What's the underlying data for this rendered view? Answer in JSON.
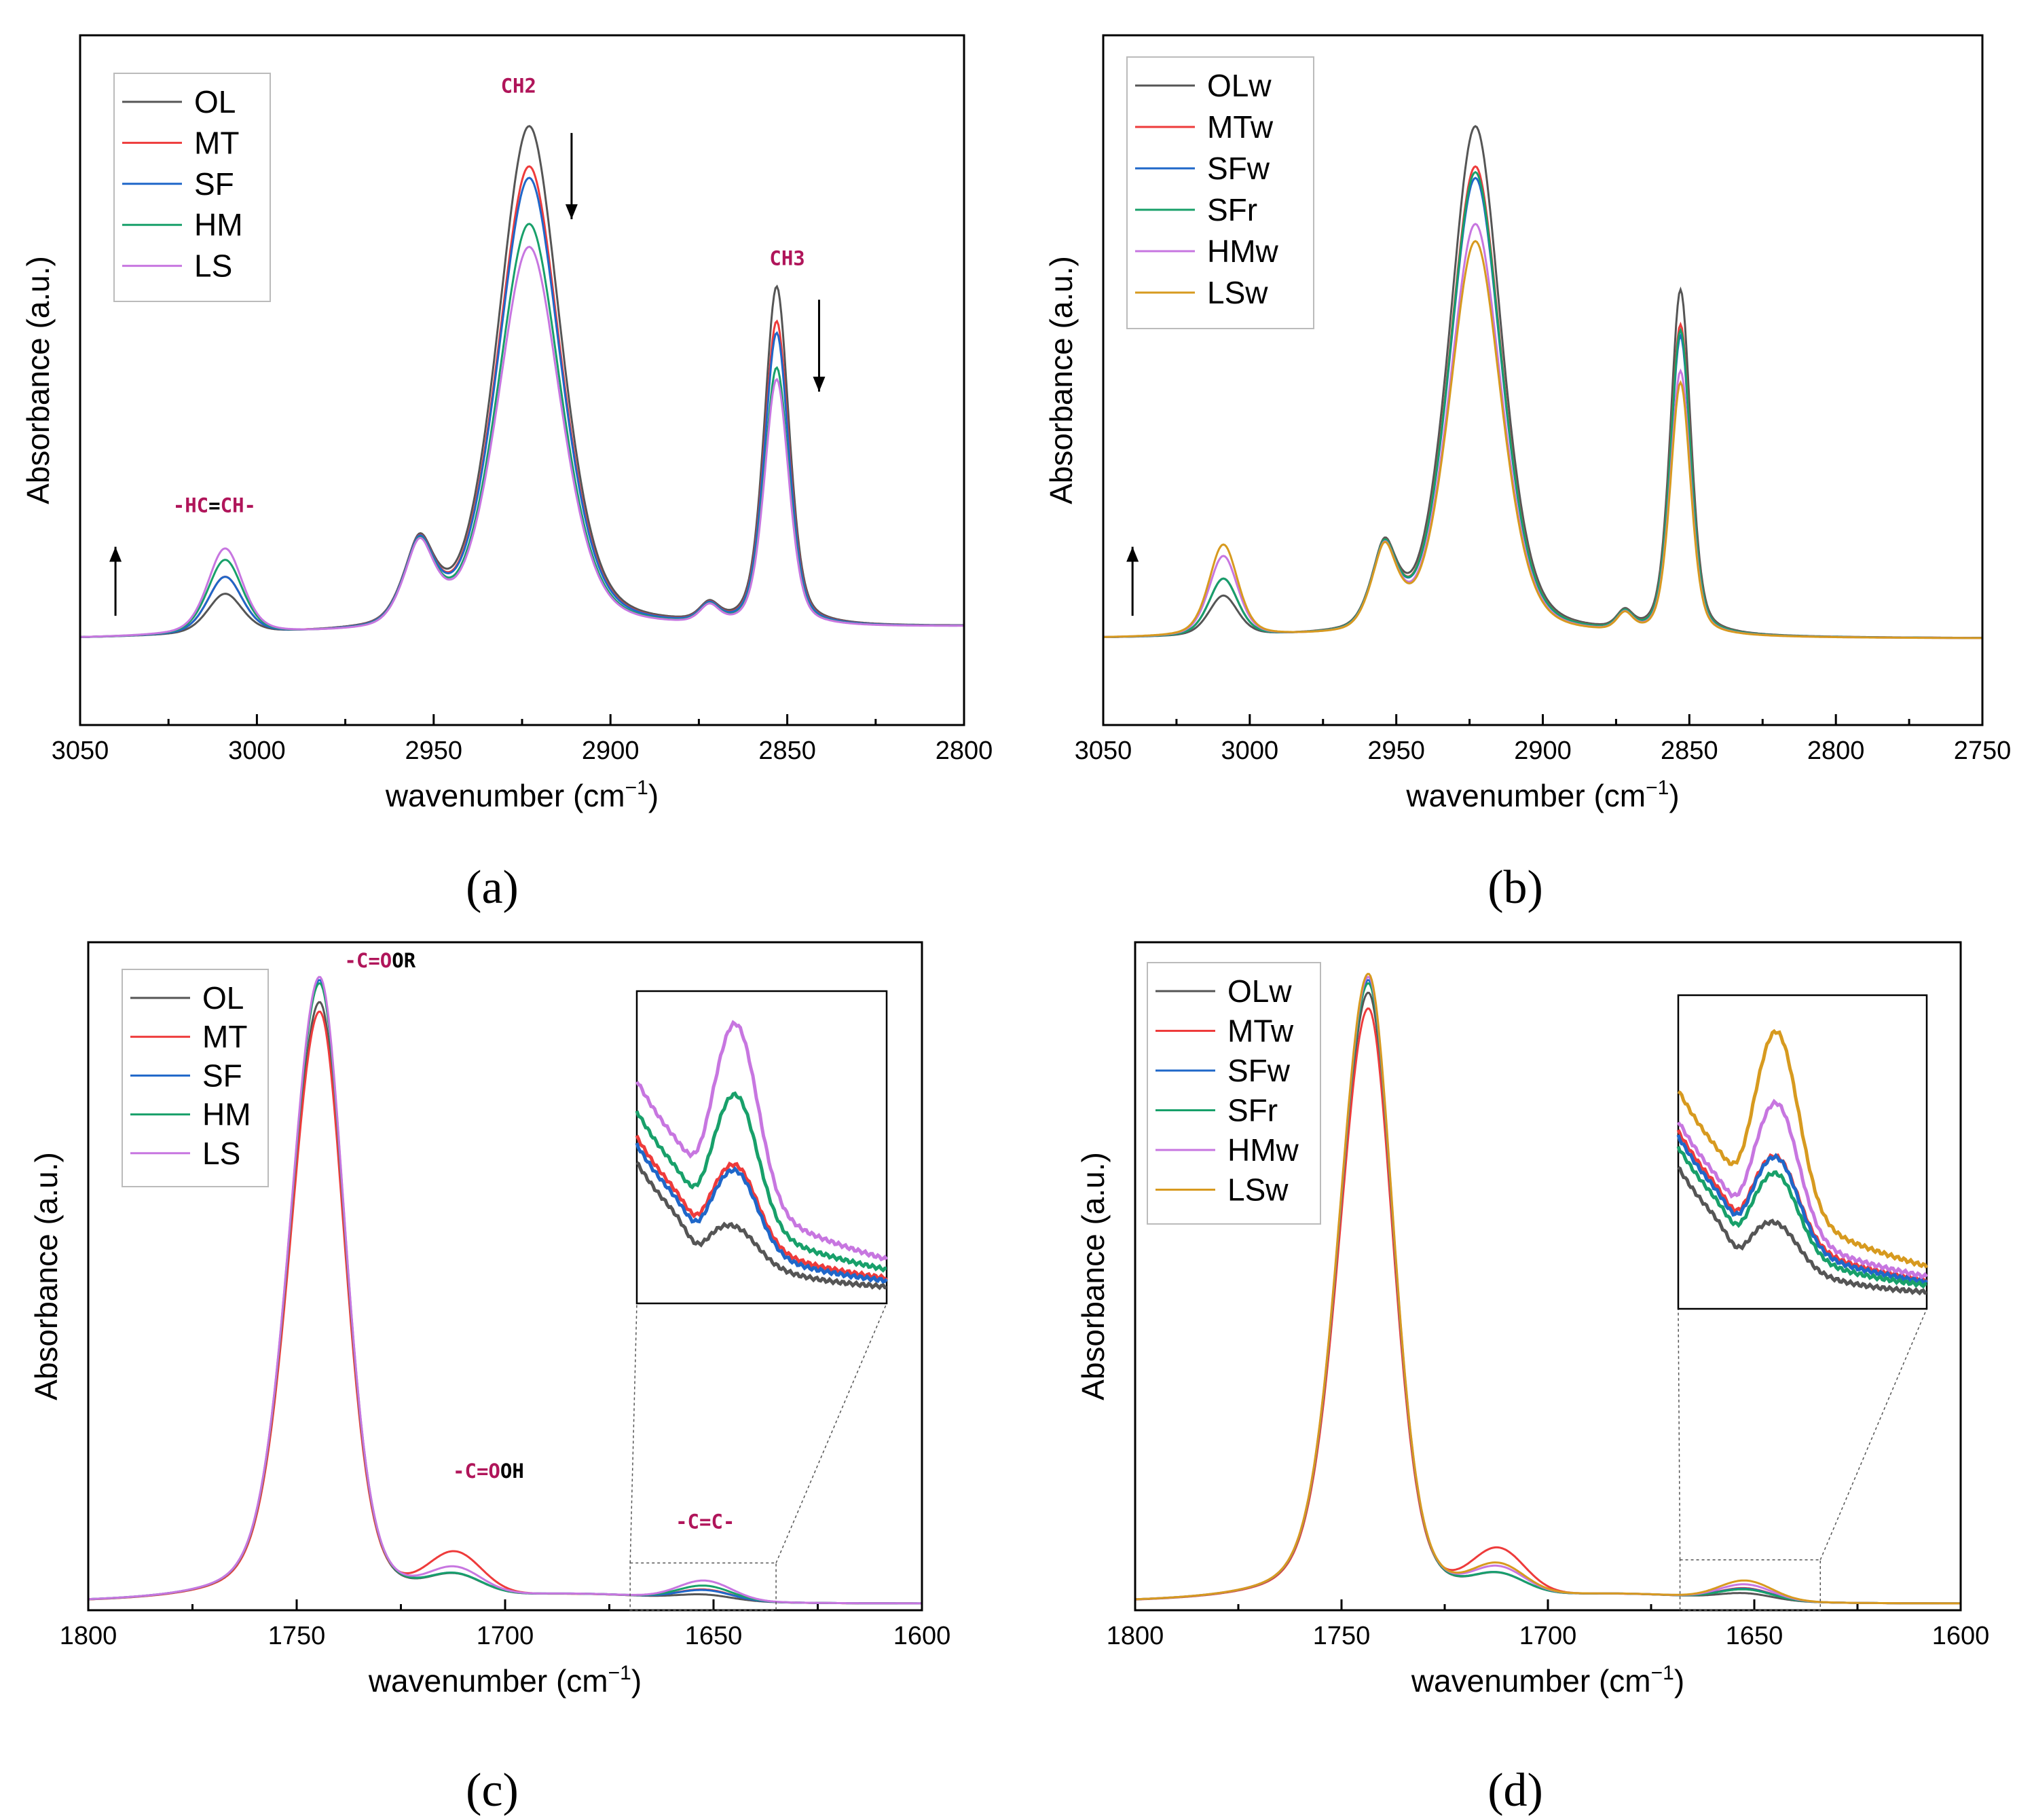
{
  "colors": {
    "OL": "#555555",
    "MT": "#ee3b3b",
    "SF": "#1f67c9",
    "HM": "#18a06a",
    "LS": "#c776e0",
    "LSw": "#d79a1f",
    "annotation": "#b0155a",
    "bond": "#000000"
  },
  "chart_data": [
    {
      "id": "a",
      "type": "line",
      "panel_label": "(a)",
      "xlabel_main": "wavenumber (cm",
      "xlabel_sup": "−1",
      "xlabel_tail": ")",
      "ylabel": "Absorbance (a.u.)",
      "xlim": [
        3050,
        2800
      ],
      "ylim": [
        -0.15,
        1.05
      ],
      "xticks": [
        3050,
        3000,
        2950,
        2900,
        2850,
        2800
      ],
      "legend": [
        "OL",
        "MT",
        "SF",
        "HM",
        "LS"
      ],
      "legend_position": "top-left",
      "baseline": {
        "x0": 3050,
        "v0": 0.0,
        "x1": 2800,
        "v1": 0.02
      },
      "components": [
        {
          "center": 3009,
          "width": 7,
          "gamma": 6
        },
        {
          "center": 2954,
          "width": 7,
          "gamma": 4
        },
        {
          "center": 2923,
          "width": 13,
          "gamma": 10
        },
        {
          "center": 2872,
          "width": 4,
          "gamma": 3
        },
        {
          "center": 2853,
          "width": 5,
          "gamma": 4
        }
      ],
      "series": [
        {
          "name": "OL",
          "color_key": "OL",
          "amps": [
            0.07,
            0.14,
            0.88,
            0.03,
            0.59
          ]
        },
        {
          "name": "MT",
          "color_key": "MT",
          "amps": [
            0.1,
            0.14,
            0.81,
            0.03,
            0.53
          ]
        },
        {
          "name": "SF",
          "color_key": "SF",
          "amps": [
            0.1,
            0.14,
            0.79,
            0.03,
            0.51
          ]
        },
        {
          "name": "HM",
          "color_key": "HM",
          "amps": [
            0.13,
            0.14,
            0.71,
            0.03,
            0.45
          ]
        },
        {
          "name": "LS",
          "color_key": "LS",
          "amps": [
            0.15,
            0.14,
            0.67,
            0.03,
            0.43
          ]
        }
      ],
      "annotations": [
        {
          "id": "ch2",
          "x": 2926,
          "y": 0.95,
          "parts": [
            {
              "text": "CH2",
              "color_key": "annotation"
            }
          ]
        },
        {
          "id": "ch3",
          "x": 2850,
          "y": 0.65,
          "parts": [
            {
              "text": "CH3",
              "color_key": "annotation"
            }
          ]
        },
        {
          "id": "hc",
          "x": 3012,
          "y": 0.22,
          "parts": [
            {
              "text": "-HC",
              "color_key": "annotation"
            },
            {
              "text": "=",
              "color_key": "bond"
            },
            {
              "text": "CH-",
              "color_key": "annotation"
            }
          ]
        }
      ],
      "arrows": [
        {
          "x": 2911,
          "y_from": 0.88,
          "y_to": 0.73
        },
        {
          "x": 2841,
          "y_from": 0.59,
          "y_to": 0.43
        },
        {
          "x": 3040,
          "y_from": 0.04,
          "y_to": 0.16
        }
      ]
    },
    {
      "id": "b",
      "type": "line",
      "panel_label": "(b)",
      "xlabel_main": "wavenumber (cm",
      "xlabel_sup": "−1",
      "xlabel_tail": ")",
      "ylabel": "Absorbance (a.u.)",
      "xlim": [
        3050,
        2750
      ],
      "ylim": [
        -0.15,
        1.05
      ],
      "xticks": [
        3050,
        3000,
        2950,
        2900,
        2850,
        2800,
        2750
      ],
      "legend": [
        "OLw",
        "MTw",
        "SFw",
        "SFr",
        "HMw",
        "LSw"
      ],
      "legend_position": "top-left",
      "baseline": {
        "x0": 3050,
        "v0": 0.0,
        "x1": 2750,
        "v1": 0.0
      },
      "components": [
        {
          "center": 3009,
          "width": 7,
          "gamma": 6
        },
        {
          "center": 2954,
          "width": 7,
          "gamma": 4
        },
        {
          "center": 2923,
          "width": 13,
          "gamma": 10
        },
        {
          "center": 2872,
          "width": 4,
          "gamma": 3
        },
        {
          "center": 2853,
          "width": 5,
          "gamma": 4
        }
      ],
      "series": [
        {
          "name": "OLw",
          "color_key": "OL",
          "amps": [
            0.07,
            0.14,
            0.89,
            0.03,
            0.6
          ]
        },
        {
          "name": "MTw",
          "color_key": "MT",
          "amps": [
            0.1,
            0.14,
            0.82,
            0.03,
            0.54
          ]
        },
        {
          "name": "SFw",
          "color_key": "SF",
          "amps": [
            0.1,
            0.14,
            0.8,
            0.03,
            0.52
          ]
        },
        {
          "name": "SFr",
          "color_key": "HM",
          "amps": [
            0.1,
            0.14,
            0.81,
            0.03,
            0.53
          ]
        },
        {
          "name": "HMw",
          "color_key": "LS",
          "amps": [
            0.14,
            0.14,
            0.72,
            0.03,
            0.46
          ]
        },
        {
          "name": "LSw",
          "color_key": "LSw",
          "amps": [
            0.16,
            0.14,
            0.69,
            0.03,
            0.44
          ]
        }
      ],
      "annotations": [],
      "arrows": [
        {
          "x": 3040,
          "y_from": 0.04,
          "y_to": 0.16
        }
      ]
    },
    {
      "id": "c",
      "type": "line",
      "panel_label": "(c)",
      "xlabel_main": "wavenumber (cm",
      "xlabel_sup": "−1",
      "xlabel_tail": ")",
      "ylabel": "Absorbance (a.u.)",
      "xlim": [
        1800,
        1600
      ],
      "ylim": [
        -0.01,
        1.05
      ],
      "xticks": [
        1800,
        1750,
        1700,
        1650,
        1600
      ],
      "legend": [
        "OL",
        "MT",
        "SF",
        "HM",
        "LS"
      ],
      "legend_position": "top-left",
      "baseline": {
        "x0": 1800,
        "v0": 0.0,
        "x1": 1600,
        "v1": 0.0
      },
      "main_peak_center": 1744.5,
      "series": [
        {
          "name": "OL",
          "color_key": "OL",
          "peak": 0.955,
          "shoulder": 0.03,
          "small": 0.008
        },
        {
          "name": "MT",
          "color_key": "MT",
          "peak": 0.94,
          "shoulder": 0.065,
          "small": 0.016
        },
        {
          "name": "SF",
          "color_key": "SF",
          "peak": 0.99,
          "shoulder": 0.03,
          "small": 0.015
        },
        {
          "name": "HM",
          "color_key": "HM",
          "peak": 0.985,
          "shoulder": 0.03,
          "small": 0.022
        },
        {
          "name": "LS",
          "color_key": "LS",
          "peak": 0.995,
          "shoulder": 0.04,
          "small": 0.03
        }
      ],
      "inset_levels": [
        0.45,
        0.6,
        0.6,
        0.78,
        0.95
      ],
      "inset_offsets": [
        0.0,
        0.1,
        0.07,
        0.2,
        0.32
      ],
      "annotations": [
        {
          "id": "ester",
          "x": 1730,
          "y": 1.01,
          "parts": [
            {
              "text": "-C=O",
              "color_key": "annotation"
            },
            {
              "text": "OR",
              "color_key": "bond"
            }
          ]
        },
        {
          "id": "acid",
          "x": 1704,
          "y": 0.2,
          "parts": [
            {
              "text": "-C=O",
              "color_key": "annotation"
            },
            {
              "text": "OH",
              "color_key": "bond"
            }
          ]
        },
        {
          "id": "alkene",
          "x": 1652,
          "y": 0.12,
          "parts": [
            {
              "text": "-C=C-",
              "color_key": "annotation"
            }
          ]
        }
      ],
      "zoom_box_x": [
        1670,
        1635
      ],
      "zoom_box_y": [
        -0.01,
        0.065
      ]
    },
    {
      "id": "d",
      "type": "line",
      "panel_label": "(d)",
      "xlabel_main": "wavenumber (cm",
      "xlabel_sup": "−1",
      "xlabel_tail": ")",
      "ylabel": "Absorbance (a.u.)",
      "xlim": [
        1800,
        1600
      ],
      "ylim": [
        -0.01,
        1.05
      ],
      "xticks": [
        1800,
        1750,
        1700,
        1650,
        1600
      ],
      "legend": [
        "OLw",
        "MTw",
        "SFw",
        "SFr",
        "HMw",
        "LSw"
      ],
      "legend_position": "top-left",
      "baseline": {
        "x0": 1800,
        "v0": 0.0,
        "x1": 1600,
        "v1": 0.0
      },
      "main_peak_center": 1743.5,
      "series": [
        {
          "name": "OLw",
          "color_key": "OL",
          "peak": 0.97,
          "shoulder": 0.03,
          "small": 0.01
        },
        {
          "name": "MTw",
          "color_key": "MT",
          "peak": 0.945,
          "shoulder": 0.07,
          "small": 0.018
        },
        {
          "name": "SFw",
          "color_key": "SF",
          "peak": 0.99,
          "shoulder": 0.03,
          "small": 0.017
        },
        {
          "name": "SFr",
          "color_key": "HM",
          "peak": 0.985,
          "shoulder": 0.03,
          "small": 0.016
        },
        {
          "name": "HMw",
          "color_key": "LS",
          "peak": 0.995,
          "shoulder": 0.04,
          "small": 0.024
        },
        {
          "name": "LSw",
          "color_key": "LSw",
          "peak": 1.0,
          "shoulder": 0.045,
          "small": 0.03
        }
      ],
      "inset_levels": [
        0.48,
        0.62,
        0.63,
        0.6,
        0.78,
        0.95
      ],
      "inset_offsets": [
        0.0,
        0.14,
        0.12,
        0.08,
        0.18,
        0.3
      ],
      "annotations": [],
      "zoom_box_x": [
        1668,
        1634
      ],
      "zoom_box_y": [
        -0.01,
        0.07
      ]
    }
  ]
}
